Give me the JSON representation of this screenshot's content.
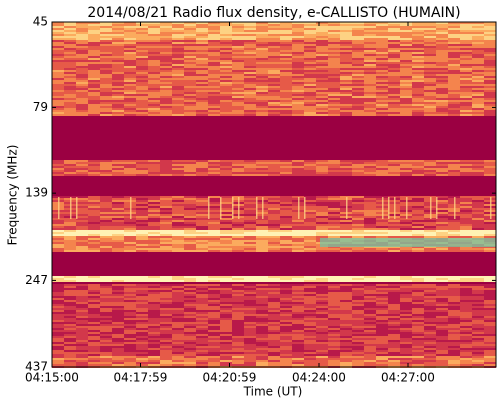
{
  "chart_data": {
    "type": "spectrogram",
    "title": "2014/08/21  Radio flux density, e-CALLISTO (HUMAIN)",
    "xlabel": "Time (UT)",
    "ylabel": "Frequency (MHz)",
    "xlim": [
      "04:15:00",
      "04:29:58"
    ],
    "xticks": [
      "04:15:00",
      "04:17:59",
      "04:20:59",
      "04:24:00",
      "04:27:00"
    ],
    "ylim": [
      45,
      437
    ],
    "yticks": [
      45,
      79,
      139,
      247,
      437
    ],
    "ylog": true,
    "y_inverted": true
  }
}
